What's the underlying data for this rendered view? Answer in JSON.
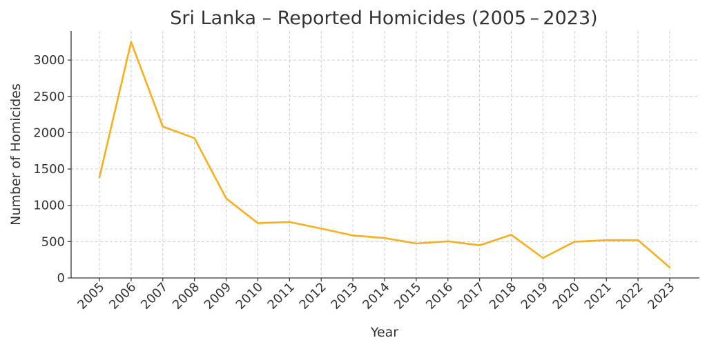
{
  "chart_data": {
    "type": "line",
    "title": "Sri Lanka – Reported Homicides (2005 – 2023)",
    "xlabel": "Year",
    "ylabel": "Number of Homicides",
    "categories": [
      "2005",
      "2006",
      "2007",
      "2008",
      "2009",
      "2010",
      "2011",
      "2012",
      "2013",
      "2014",
      "2015",
      "2016",
      "2017",
      "2018",
      "2019",
      "2020",
      "2021",
      "2022",
      "2023"
    ],
    "series": [
      {
        "values": [
          1385,
          3250,
          2085,
          1925,
          1095,
          755,
          770,
          680,
          585,
          550,
          475,
          505,
          450,
          595,
          275,
          500,
          520,
          520,
          145
        ],
        "color": "#F9AE1B"
      }
    ],
    "ylim": [
      0,
      3400
    ],
    "yticks": [
      0,
      500,
      1000,
      1500,
      2000,
      2500,
      3000
    ],
    "grid": true,
    "legend": "none"
  }
}
